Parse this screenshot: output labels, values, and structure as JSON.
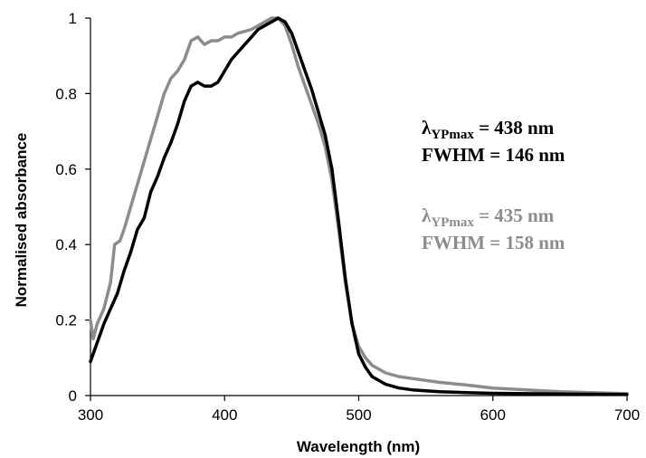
{
  "chart_data": {
    "type": "line",
    "title": "",
    "xlabel": "Wavelength (nm)",
    "ylabel": "Normalised absorbance",
    "xlim": [
      300,
      700
    ],
    "ylim": [
      0,
      1
    ],
    "x_ticks": [
      "300",
      "400",
      "500",
      "600",
      "700"
    ],
    "y_ticks": [
      "0",
      "0.2",
      "0.4",
      "0.6",
      "0.8",
      "1"
    ],
    "grid": false,
    "legend": "none",
    "series": [
      {
        "color": "#8c8c8c",
        "points": [
          [
            300,
            0.2
          ],
          [
            302,
            0.15
          ],
          [
            305,
            0.19
          ],
          [
            310,
            0.23
          ],
          [
            315,
            0.3
          ],
          [
            318,
            0.4
          ],
          [
            322,
            0.41
          ],
          [
            325,
            0.44
          ],
          [
            330,
            0.5
          ],
          [
            335,
            0.56
          ],
          [
            340,
            0.62
          ],
          [
            345,
            0.68
          ],
          [
            350,
            0.74
          ],
          [
            355,
            0.8
          ],
          [
            360,
            0.84
          ],
          [
            365,
            0.86
          ],
          [
            370,
            0.89
          ],
          [
            375,
            0.94
          ],
          [
            380,
            0.95
          ],
          [
            385,
            0.93
          ],
          [
            390,
            0.94
          ],
          [
            395,
            0.94
          ],
          [
            400,
            0.95
          ],
          [
            405,
            0.95
          ],
          [
            410,
            0.96
          ],
          [
            420,
            0.97
          ],
          [
            430,
            0.99
          ],
          [
            435,
            1.0
          ],
          [
            440,
            1.0
          ],
          [
            445,
            0.98
          ],
          [
            450,
            0.93
          ],
          [
            455,
            0.87
          ],
          [
            460,
            0.82
          ],
          [
            465,
            0.77
          ],
          [
            470,
            0.72
          ],
          [
            475,
            0.66
          ],
          [
            480,
            0.57
          ],
          [
            485,
            0.44
          ],
          [
            490,
            0.3
          ],
          [
            495,
            0.19
          ],
          [
            500,
            0.13
          ],
          [
            505,
            0.1
          ],
          [
            510,
            0.08
          ],
          [
            520,
            0.06
          ],
          [
            530,
            0.05
          ],
          [
            540,
            0.045
          ],
          [
            560,
            0.035
          ],
          [
            580,
            0.028
          ],
          [
            600,
            0.02
          ],
          [
            650,
            0.01
          ],
          [
            700,
            0.005
          ]
        ]
      },
      {
        "color": "#000000",
        "points": [
          [
            300,
            0.09
          ],
          [
            303,
            0.12
          ],
          [
            307,
            0.16
          ],
          [
            310,
            0.19
          ],
          [
            315,
            0.23
          ],
          [
            320,
            0.27
          ],
          [
            325,
            0.33
          ],
          [
            330,
            0.38
          ],
          [
            335,
            0.44
          ],
          [
            340,
            0.47
          ],
          [
            345,
            0.54
          ],
          [
            350,
            0.58
          ],
          [
            355,
            0.63
          ],
          [
            360,
            0.67
          ],
          [
            365,
            0.72
          ],
          [
            370,
            0.78
          ],
          [
            375,
            0.82
          ],
          [
            380,
            0.83
          ],
          [
            385,
            0.82
          ],
          [
            390,
            0.82
          ],
          [
            395,
            0.83
          ],
          [
            400,
            0.86
          ],
          [
            405,
            0.89
          ],
          [
            410,
            0.91
          ],
          [
            415,
            0.93
          ],
          [
            420,
            0.95
          ],
          [
            425,
            0.97
          ],
          [
            430,
            0.98
          ],
          [
            435,
            0.99
          ],
          [
            440,
            1.0
          ],
          [
            445,
            0.99
          ],
          [
            450,
            0.96
          ],
          [
            455,
            0.91
          ],
          [
            460,
            0.86
          ],
          [
            465,
            0.81
          ],
          [
            470,
            0.75
          ],
          [
            475,
            0.69
          ],
          [
            480,
            0.6
          ],
          [
            485,
            0.46
          ],
          [
            490,
            0.31
          ],
          [
            495,
            0.19
          ],
          [
            500,
            0.11
          ],
          [
            505,
            0.075
          ],
          [
            510,
            0.05
          ],
          [
            520,
            0.03
          ],
          [
            530,
            0.02
          ],
          [
            540,
            0.015
          ],
          [
            560,
            0.01
          ],
          [
            580,
            0.008
          ],
          [
            600,
            0.006
          ],
          [
            650,
            0.004
          ],
          [
            700,
            0.003
          ]
        ]
      }
    ],
    "annotations": [
      {
        "symbol": "λ",
        "sub": "YPmax",
        "line1_rest": " = 438 nm",
        "line2": "FWHM = 146 nm",
        "color": "#000000"
      },
      {
        "symbol": "λ",
        "sub": "YPmax",
        "line1_rest": " = 435 nm",
        "line2": "FWHM = 158 nm",
        "color": "#8c8c8c"
      }
    ]
  }
}
